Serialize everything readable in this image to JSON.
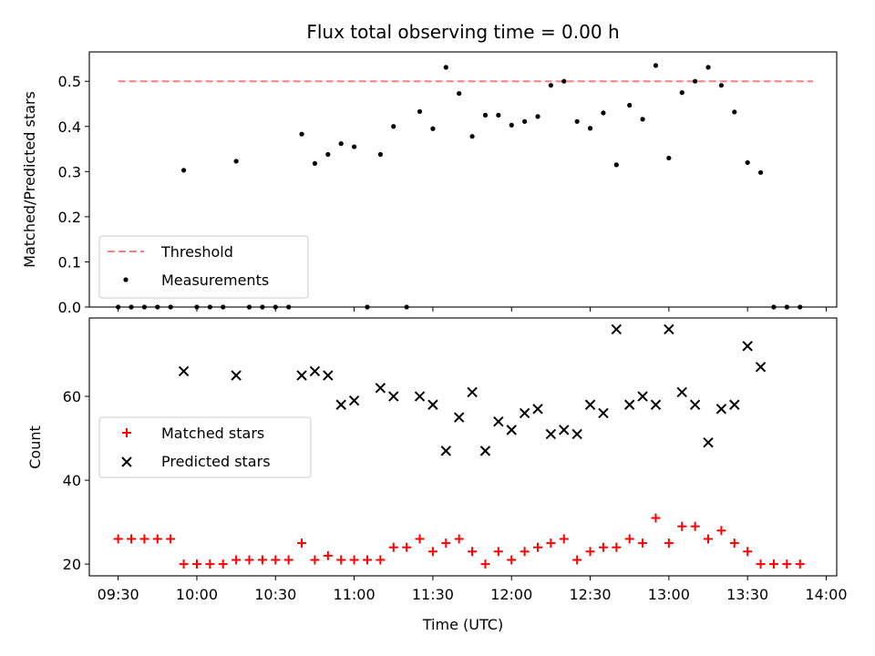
{
  "chart_data": {
    "title": "Flux total observing time = 0.00 h",
    "xlabel": "Time (UTC)",
    "x_ticks": [
      "09:30",
      "10:00",
      "10:30",
      "11:00",
      "11:30",
      "12:00",
      "12:30",
      "13:00",
      "13:30",
      "14:00"
    ],
    "x_range": [
      "09:19",
      "14:04"
    ],
    "top": {
      "type": "scatter",
      "ylabel": "Matched/Predicted stars",
      "ylim": [
        0,
        0.565
      ],
      "y_ticks": [
        "0.0",
        "0.1",
        "0.2",
        "0.3",
        "0.4",
        "0.5"
      ],
      "legend_placement": "lower-left",
      "threshold": {
        "name": "Threshold",
        "value": 0.5,
        "x_range": [
          "09:30",
          "13:55"
        ],
        "color": "#ff7f7f"
      },
      "measurements": {
        "name": "Measurements",
        "color": "#000000",
        "x": [
          "09:30",
          "09:35",
          "09:40",
          "09:45",
          "09:50",
          "09:55",
          "10:00",
          "10:05",
          "10:10",
          "10:15",
          "10:20",
          "10:25",
          "10:30",
          "10:35",
          "10:40",
          "10:45",
          "10:50",
          "10:55",
          "11:00",
          "11:05",
          "11:10",
          "11:15",
          "11:20",
          "11:25",
          "11:30",
          "11:35",
          "11:40",
          "11:45",
          "11:50",
          "11:55",
          "12:00",
          "12:05",
          "12:10",
          "12:15",
          "12:20",
          "12:25",
          "12:30",
          "12:35",
          "12:40",
          "12:45",
          "12:50",
          "12:55",
          "13:00",
          "13:05",
          "13:10",
          "13:15",
          "13:20",
          "13:25",
          "13:30",
          "13:35",
          "13:40",
          "13:45",
          "13:50"
        ],
        "y": [
          0.0,
          0.0,
          0.0,
          0.0,
          0.0,
          0.303,
          0.0,
          0.0,
          0.0,
          0.323,
          0.0,
          0.0,
          0.0,
          0.0,
          0.383,
          0.318,
          0.338,
          0.362,
          0.355,
          0.0,
          0.338,
          0.4,
          0.0,
          0.433,
          0.395,
          0.531,
          0.473,
          0.378,
          0.425,
          0.425,
          0.403,
          0.411,
          0.422,
          0.491,
          0.5,
          0.411,
          0.396,
          0.43,
          0.315,
          0.447,
          0.416,
          0.535,
          0.33,
          0.475,
          0.5,
          0.531,
          0.491,
          0.432,
          0.32,
          0.298,
          0.0,
          0.0,
          0.0
        ]
      }
    },
    "bottom": {
      "type": "scatter",
      "ylabel": "Count",
      "ylim": [
        17.2,
        78.7
      ],
      "y_ticks": [
        "20",
        "40",
        "60"
      ],
      "legend_placement": "center-left",
      "series": [
        {
          "name": "Matched stars",
          "marker": "plus",
          "color": "#ff0000",
          "x": [
            "09:30",
            "09:35",
            "09:40",
            "09:45",
            "09:50",
            "09:55",
            "10:00",
            "10:05",
            "10:10",
            "10:15",
            "10:20",
            "10:25",
            "10:30",
            "10:35",
            "10:40",
            "10:45",
            "10:50",
            "10:55",
            "11:00",
            "11:05",
            "11:10",
            "11:15",
            "11:20",
            "11:25",
            "11:30",
            "11:35",
            "11:40",
            "11:45",
            "11:50",
            "11:55",
            "12:00",
            "12:05",
            "12:10",
            "12:15",
            "12:20",
            "12:25",
            "12:30",
            "12:35",
            "12:40",
            "12:45",
            "12:50",
            "12:55",
            "13:00",
            "13:05",
            "13:10",
            "13:15",
            "13:20",
            "13:25",
            "13:30",
            "13:35",
            "13:40",
            "13:45",
            "13:50"
          ],
          "y": [
            26,
            26,
            26,
            26,
            26,
            20,
            20,
            20,
            20,
            21,
            21,
            21,
            21,
            21,
            25,
            21,
            22,
            21,
            21,
            21,
            21,
            24,
            24,
            26,
            23,
            25,
            26,
            23,
            20,
            23,
            21,
            23,
            24,
            25,
            26,
            21,
            23,
            24,
            24,
            26,
            25,
            31,
            25,
            29,
            29,
            26,
            28,
            25,
            23,
            20,
            20,
            20,
            20
          ]
        },
        {
          "name": "Predicted stars",
          "marker": "x",
          "color": "#000000",
          "x": [
            "09:55",
            "10:15",
            "10:40",
            "10:45",
            "10:50",
            "10:55",
            "11:00",
            "11:10",
            "11:15",
            "11:25",
            "11:30",
            "11:35",
            "11:40",
            "11:45",
            "11:50",
            "11:55",
            "12:00",
            "12:05",
            "12:10",
            "12:15",
            "12:20",
            "12:25",
            "12:30",
            "12:35",
            "12:40",
            "12:45",
            "12:50",
            "12:55",
            "13:00",
            "13:05",
            "13:10",
            "13:15",
            "13:20",
            "13:25",
            "13:30",
            "13:35"
          ],
          "y": [
            66,
            65,
            65,
            66,
            65,
            58,
            59,
            62,
            60,
            60,
            58,
            47,
            55,
            61,
            47,
            54,
            52,
            56,
            57,
            51,
            52,
            51,
            58,
            56,
            76,
            58,
            60,
            58,
            76,
            61,
            58,
            49,
            57,
            58,
            72,
            67
          ]
        }
      ]
    }
  }
}
